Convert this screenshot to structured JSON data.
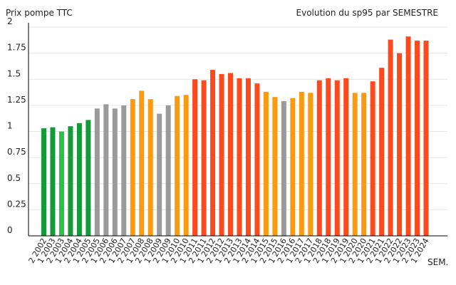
{
  "chart_data": {
    "type": "bar",
    "title": "Evolution du sp95 par SEMESTRE",
    "ylabel": "Prix pompe TTC",
    "xlabel": "SEM.",
    "ylim": [
      0,
      2
    ],
    "yticks": [
      "0",
      "0.25",
      "0.5",
      "0.75",
      "1",
      "1.25",
      "1.5",
      "1.75",
      "2"
    ],
    "grid": true,
    "categories": [
      "2 2002",
      "1 2003",
      "2 2003",
      "1 2004",
      "2 2004",
      "1 2005",
      "2 2005",
      "1 2006",
      "2 2006",
      "1 2007",
      "2 2007",
      "1 2008",
      "2 2008",
      "1 2009",
      "2 2009",
      "1 2010",
      "2 2010",
      "1 2011",
      "2 2011",
      "1 2012",
      "2 2012",
      "1 2013",
      "2 2013",
      "1 2014",
      "2 2014",
      "1 2015",
      "2 2015",
      "1 2016",
      "2 2016",
      "1 2017",
      "2 2017",
      "1 2018",
      "2 2018",
      "1 2019",
      "2 2019",
      "1 2020",
      "2 2020",
      "1 2021",
      "2 2021",
      "1 2022",
      "2 2022",
      "1 2023",
      "2 2023",
      "1 2024"
    ],
    "values": [
      1.03,
      1.04,
      1.0,
      1.05,
      1.08,
      1.11,
      1.22,
      1.26,
      1.22,
      1.25,
      1.31,
      1.39,
      1.31,
      1.17,
      1.25,
      1.34,
      1.35,
      1.5,
      1.49,
      1.59,
      1.55,
      1.56,
      1.51,
      1.51,
      1.46,
      1.38,
      1.33,
      1.29,
      1.32,
      1.38,
      1.37,
      1.49,
      1.51,
      1.49,
      1.51,
      1.37,
      1.37,
      1.48,
      1.61,
      1.88,
      1.75,
      1.91,
      1.87,
      1.87
    ],
    "bar_colors": [
      "#159a3a",
      "#159a3a",
      "#2bbf4c",
      "#159a3a",
      "#159a3a",
      "#159a3a",
      "#9a9a9a",
      "#9a9a9a",
      "#9a9a9a",
      "#9a9a9a",
      "#fa9a10",
      "#fa9a10",
      "#fa9a10",
      "#9a9a9a",
      "#9a9a9a",
      "#fa9a10",
      "#fa9a10",
      "#fb4a1e",
      "#fb4a1e",
      "#fb4a1e",
      "#fb4a1e",
      "#fb4a1e",
      "#fb4a1e",
      "#fb4a1e",
      "#fb4a1e",
      "#fa9a10",
      "#fa9a10",
      "#9a9a9a",
      "#fa9a10",
      "#fa9a10",
      "#fa9a10",
      "#fb4a1e",
      "#fb4a1e",
      "#fb4a1e",
      "#fb4a1e",
      "#fa9a10",
      "#fa9a10",
      "#fb4a1e",
      "#fb4a1e",
      "#fb4a1e",
      "#fb4a1e",
      "#fb4a1e",
      "#fb4a1e",
      "#fb4a1e"
    ],
    "grid_color": "#e6e6e6",
    "axis_color": "#000000"
  }
}
